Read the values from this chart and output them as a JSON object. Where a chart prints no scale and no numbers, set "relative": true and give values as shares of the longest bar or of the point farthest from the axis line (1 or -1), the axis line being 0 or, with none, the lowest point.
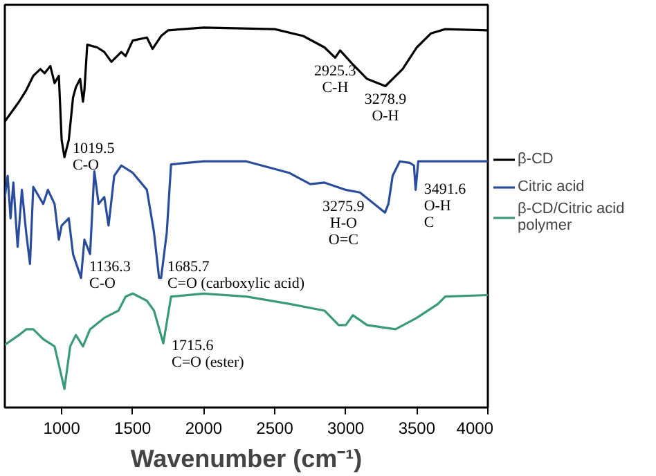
{
  "chart_data": {
    "type": "line",
    "relative": true,
    "xlabel": "Wavenumber (cm⁻¹)",
    "xlim": [
      600,
      4000
    ],
    "xticks": [
      1000,
      1500,
      2000,
      2500,
      3000,
      3500,
      4000
    ],
    "tick_labels": "x",
    "grid": false,
    "legend": "right",
    "line_style": "solid",
    "marker": "none",
    "series": [
      {
        "name": "β-CD",
        "color": "#000000",
        "x": [
          600,
          650,
          700,
          750,
          800,
          850,
          880,
          920,
          950,
          980,
          1000,
          1019.5,
          1050,
          1080,
          1100,
          1130,
          1150,
          1160,
          1180,
          1250,
          1300,
          1350,
          1420,
          1450,
          1500,
          1600,
          1640,
          1700,
          1750,
          2000,
          2500,
          2700,
          2850,
          2925.3,
          2960,
          3050,
          3150,
          3278.9,
          3400,
          3500,
          3600,
          3700,
          4000
        ],
        "values": [
          0.753,
          0.779,
          0.805,
          0.835,
          0.873,
          0.891,
          0.88,
          0.899,
          0.854,
          0.873,
          0.704,
          0.659,
          0.704,
          0.816,
          0.843,
          0.865,
          0.805,
          0.835,
          0.955,
          0.948,
          0.936,
          0.91,
          0.936,
          0.925,
          0.966,
          0.974,
          0.944,
          0.978,
          0.993,
          1.0,
          0.996,
          0.978,
          0.948,
          0.921,
          0.94,
          0.903,
          0.865,
          0.846,
          0.891,
          0.948,
          0.985,
          0.996,
          0.993
        ]
      },
      {
        "name": "Citric acid",
        "color": "#2a4d9b",
        "x": [
          600,
          620,
          640,
          660,
          690,
          720,
          750,
          777,
          800,
          870,
          903,
          950,
          980,
          1000,
          1050,
          1080,
          1136.3,
          1160,
          1200,
          1230,
          1260,
          1300,
          1330,
          1370,
          1420,
          1500,
          1600,
          1650,
          1685.7,
          1700,
          1740,
          1770,
          2000,
          2300,
          2600,
          2750,
          2850,
          3000,
          3100,
          3200,
          3275.9,
          3300,
          3330,
          3380,
          3450,
          3480,
          3491.6,
          3510,
          4000
        ],
        "values": [
          0.554,
          0.61,
          0.498,
          0.592,
          0.423,
          0.573,
          0.461,
          0.378,
          0.581,
          0.536,
          0.573,
          0.536,
          0.442,
          0.479,
          0.498,
          0.404,
          0.341,
          0.442,
          0.404,
          0.622,
          0.536,
          0.554,
          0.479,
          0.61,
          0.637,
          0.618,
          0.573,
          0.461,
          0.341,
          0.341,
          0.461,
          0.64,
          0.648,
          0.648,
          0.618,
          0.588,
          0.592,
          0.573,
          0.566,
          0.536,
          0.513,
          0.536,
          0.61,
          0.648,
          0.644,
          0.637,
          0.573,
          0.648,
          0.648
        ]
      },
      {
        "name": "β-CD/Citric acid polymer",
        "color": "#3a9a78",
        "x": [
          600,
          700,
          750,
          800,
          870,
          950,
          1019.5,
          1060,
          1100,
          1150,
          1200,
          1300,
          1400,
          1450,
          1500,
          1600,
          1650,
          1715.6,
          1770,
          2000,
          2300,
          2600,
          2850,
          2950,
          3000,
          3050,
          3150,
          3350,
          3500,
          3650,
          3700,
          4000
        ],
        "values": [
          0.165,
          0.191,
          0.206,
          0.206,
          0.18,
          0.161,
          0.049,
          0.161,
          0.191,
          0.161,
          0.206,
          0.236,
          0.255,
          0.292,
          0.3,
          0.281,
          0.255,
          0.169,
          0.292,
          0.3,
          0.292,
          0.273,
          0.255,
          0.217,
          0.217,
          0.243,
          0.217,
          0.206,
          0.236,
          0.273,
          0.292,
          0.296
        ]
      }
    ],
    "annotations": [
      {
        "text": "1019.5\nC-O",
        "x": 1019.5,
        "y": 0.659
      },
      {
        "text": "2925.3\nC-H",
        "x": 2925.3,
        "y": 0.921
      },
      {
        "text": "3278.9\nO-H",
        "x": 3278.9,
        "y": 0.846
      },
      {
        "text": "1136.3\nC-O",
        "x": 1136.3,
        "y": 0.341
      },
      {
        "text": "1685.7\nC=O (carboxylic acid)",
        "x": 1685.7,
        "y": 0.341
      },
      {
        "text": "3275.9\nH-O\nO=C",
        "x": 3275.9,
        "y": 0.513
      },
      {
        "text": "3491.6\nO-H\nC",
        "x": 3491.6,
        "y": 0.573
      },
      {
        "text": "1715.6\nC=O (ester)",
        "x": 1715.6,
        "y": 0.169
      }
    ]
  }
}
